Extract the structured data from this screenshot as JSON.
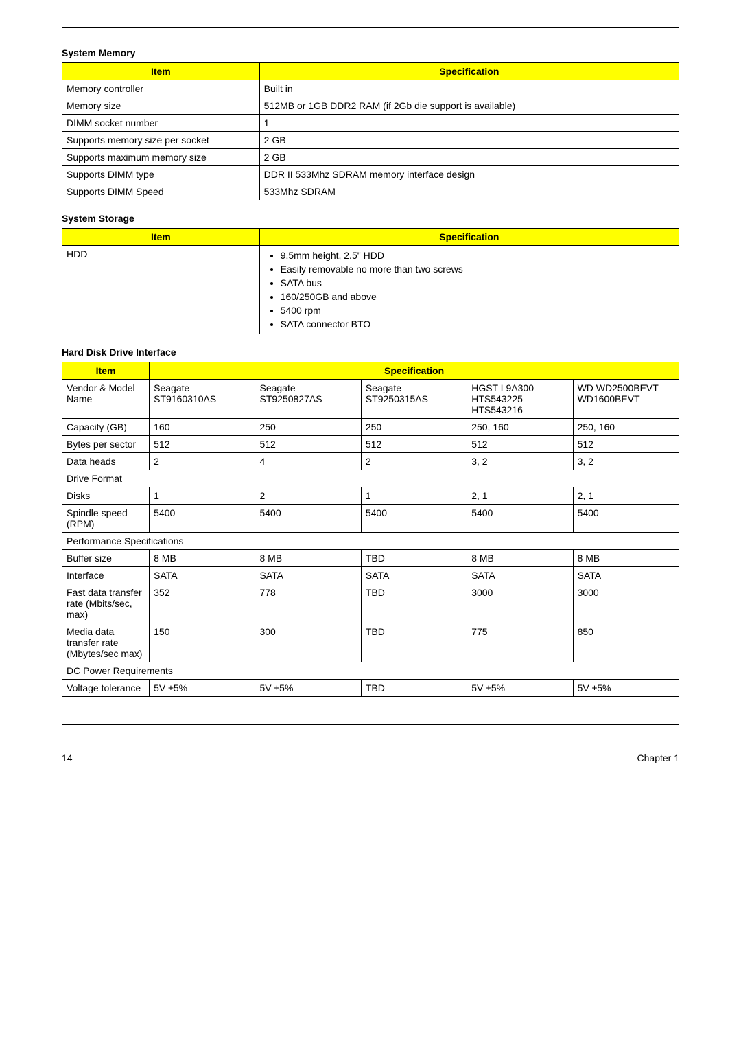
{
  "sections": {
    "memory": {
      "title": "System Memory",
      "columns": [
        "Item",
        "Specification"
      ],
      "rows": [
        [
          "Memory controller",
          "Built in"
        ],
        [
          "Memory size",
          "512MB or 1GB DDR2 RAM (if 2Gb die support is available)"
        ],
        [
          "DIMM socket number",
          "1"
        ],
        [
          "Supports memory size per socket",
          "2 GB"
        ],
        [
          "Supports maximum memory size",
          "2 GB"
        ],
        [
          "Supports DIMM type",
          "DDR II 533Mhz SDRAM memory interface design"
        ],
        [
          "Supports DIMM Speed",
          "533Mhz SDRAM"
        ]
      ]
    },
    "storage": {
      "title": "System Storage",
      "columns": [
        "Item",
        "Specification"
      ],
      "item": "HDD",
      "spec_list": [
        "9.5mm height, 2.5\" HDD",
        "Easily removable no more than two screws",
        "SATA bus",
        "160/250GB and above",
        "5400 rpm",
        "SATA connector BTO"
      ]
    },
    "hdd": {
      "title": "Hard Disk Drive Interface",
      "columns": [
        "Item",
        "Specification"
      ],
      "rows": [
        {
          "type": "data",
          "cells": [
            "Vendor & Model Name",
            "Seagate ST9160310AS",
            "Seagate ST9250827AS",
            "Seagate ST9250315AS",
            "HGST L9A300 HTS543225 HTS543216",
            "WD WD2500BEVT WD1600BEVT"
          ]
        },
        {
          "type": "data",
          "cells": [
            "Capacity (GB)",
            "160",
            "250",
            "250",
            "250, 160",
            "250, 160"
          ]
        },
        {
          "type": "data",
          "cells": [
            "Bytes per sector",
            "512",
            "512",
            "512",
            "512",
            "512"
          ]
        },
        {
          "type": "data",
          "cells": [
            "Data heads",
            "2",
            "4",
            "2",
            "3, 2",
            "3, 2"
          ]
        },
        {
          "type": "span",
          "label": "Drive Format"
        },
        {
          "type": "data",
          "cells": [
            "Disks",
            "1",
            "2",
            "1",
            "2, 1",
            "2, 1"
          ]
        },
        {
          "type": "data",
          "cells": [
            "Spindle speed (RPM)",
            "5400",
            "5400",
            "5400",
            "5400",
            "5400"
          ]
        },
        {
          "type": "span",
          "label": "Performance Specifications"
        },
        {
          "type": "data",
          "cells": [
            "Buffer size",
            "8 MB",
            "8 MB",
            "TBD",
            "8 MB",
            "8 MB"
          ]
        },
        {
          "type": "data",
          "cells": [
            "Interface",
            "SATA",
            "SATA",
            "SATA",
            "SATA",
            "SATA"
          ]
        },
        {
          "type": "data",
          "cells": [
            "Fast data transfer rate (Mbits/sec, max)",
            "352",
            "778",
            "TBD",
            "3000",
            "3000"
          ]
        },
        {
          "type": "data",
          "cells": [
            "Media data transfer rate (Mbytes/sec max)",
            "150",
            "300",
            "TBD",
            "775",
            "850"
          ]
        },
        {
          "type": "span",
          "label": "DC Power Requirements"
        },
        {
          "type": "data",
          "cells": [
            "Voltage tolerance",
            "5V ±5%",
            "5V ±5%",
            "TBD",
            "5V ±5%",
            "5V ±5%"
          ]
        }
      ]
    }
  },
  "footer": {
    "page": "14",
    "chapter": "Chapter 1"
  }
}
